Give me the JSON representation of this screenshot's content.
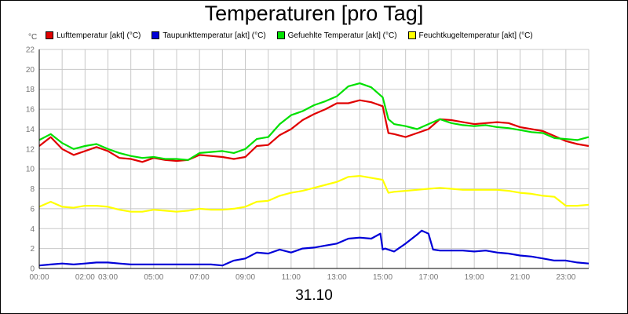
{
  "chart_data": {
    "type": "line",
    "title": "Temperaturen [pro Tag]",
    "unit_label": "°C",
    "date_label": "31.10",
    "ylim": [
      0,
      22
    ],
    "y_ticks": [
      0,
      2,
      4,
      6,
      8,
      10,
      12,
      14,
      16,
      18,
      20,
      22
    ],
    "xlim": [
      0,
      24
    ],
    "x_ticks": [
      {
        "value": 0,
        "label": "00:00"
      },
      {
        "value": 2,
        "label": "02:00"
      },
      {
        "value": 3,
        "label": "03:00"
      },
      {
        "value": 5,
        "label": "05:00"
      },
      {
        "value": 7,
        "label": "07:00"
      },
      {
        "value": 9,
        "label": "09:00"
      },
      {
        "value": 11,
        "label": "11:00"
      },
      {
        "value": 13,
        "label": "13:00"
      },
      {
        "value": 15,
        "label": "15:00"
      },
      {
        "value": 17,
        "label": "17:00"
      },
      {
        "value": 19,
        "label": "19:00"
      },
      {
        "value": 21,
        "label": "21:00"
      },
      {
        "value": 23,
        "label": "23:00"
      }
    ],
    "grid": true,
    "legend_position": "top",
    "series": [
      {
        "name": "Lufttemperatur [akt] (°C)",
        "color": "#e00000",
        "x": [
          0,
          0.5,
          1,
          1.5,
          2,
          2.5,
          3,
          3.5,
          4,
          4.5,
          5,
          5.5,
          6,
          6.5,
          7,
          7.5,
          8,
          8.5,
          9,
          9.5,
          10,
          10.5,
          11,
          11.5,
          12,
          12.5,
          13,
          13.5,
          14,
          14.5,
          15,
          15.25,
          15.5,
          16,
          16.5,
          17,
          17.5,
          18,
          18.5,
          19,
          19.5,
          20,
          20.5,
          21,
          21.5,
          22,
          22.5,
          23,
          23.5,
          24
        ],
        "y": [
          12.3,
          13.2,
          12.0,
          11.4,
          11.8,
          12.2,
          11.8,
          11.1,
          11.0,
          10.7,
          11.1,
          10.9,
          10.8,
          10.9,
          11.4,
          11.3,
          11.2,
          11.0,
          11.2,
          12.3,
          12.4,
          13.4,
          14.0,
          14.9,
          15.5,
          16.0,
          16.6,
          16.6,
          16.9,
          16.7,
          16.3,
          13.6,
          13.5,
          13.2,
          13.6,
          14.0,
          15.0,
          14.9,
          14.7,
          14.5,
          14.6,
          14.7,
          14.6,
          14.2,
          14.0,
          13.8,
          13.3,
          12.8,
          12.5,
          12.3
        ]
      },
      {
        "name": "Taupunkttemperatur [akt] (°C)",
        "color": "#0000d8",
        "x": [
          0,
          0.5,
          1,
          1.5,
          2,
          2.5,
          3,
          3.5,
          4,
          4.5,
          5,
          5.5,
          6,
          6.5,
          7,
          7.5,
          8,
          8.5,
          9,
          9.5,
          10,
          10.5,
          11,
          11.5,
          12,
          12.5,
          13,
          13.5,
          14,
          14.5,
          14.9,
          15.0,
          15.1,
          15.5,
          16,
          16.5,
          16.7,
          17.0,
          17.2,
          17.5,
          18,
          18.5,
          19,
          19.5,
          20,
          20.5,
          21,
          21.5,
          22,
          22.5,
          23,
          23.5,
          24
        ],
        "y": [
          0.3,
          0.4,
          0.5,
          0.4,
          0.5,
          0.6,
          0.6,
          0.5,
          0.4,
          0.4,
          0.4,
          0.4,
          0.4,
          0.4,
          0.4,
          0.4,
          0.3,
          0.8,
          1.0,
          1.6,
          1.5,
          1.9,
          1.6,
          2.0,
          2.1,
          2.3,
          2.5,
          3.0,
          3.1,
          3.0,
          3.5,
          1.9,
          2.0,
          1.7,
          2.5,
          3.4,
          3.8,
          3.5,
          1.9,
          1.8,
          1.8,
          1.8,
          1.7,
          1.8,
          1.6,
          1.5,
          1.3,
          1.2,
          1.0,
          0.8,
          0.8,
          0.6,
          0.5
        ]
      },
      {
        "name": "Gefuehlte Temperatur [akt] (°C)",
        "color": "#00e000",
        "x": [
          0,
          0.5,
          1,
          1.5,
          2,
          2.5,
          3,
          3.5,
          4,
          4.5,
          5,
          5.5,
          6,
          6.5,
          7,
          7.5,
          8,
          8.5,
          9,
          9.5,
          10,
          10.5,
          11,
          11.5,
          12,
          12.5,
          13,
          13.5,
          14,
          14.5,
          15,
          15.25,
          15.5,
          16,
          16.5,
          17,
          17.5,
          18,
          18.5,
          19,
          19.5,
          20,
          20.5,
          21,
          21.5,
          22,
          22.5,
          23,
          23.5,
          24
        ],
        "y": [
          12.9,
          13.5,
          12.6,
          12.0,
          12.3,
          12.5,
          12.0,
          11.6,
          11.3,
          11.1,
          11.2,
          11.0,
          11.0,
          10.9,
          11.6,
          11.7,
          11.8,
          11.6,
          12.0,
          13.0,
          13.2,
          14.5,
          15.4,
          15.8,
          16.4,
          16.8,
          17.3,
          18.3,
          18.6,
          18.2,
          17.2,
          15.0,
          14.5,
          14.3,
          14.0,
          14.5,
          15.0,
          14.6,
          14.4,
          14.3,
          14.4,
          14.2,
          14.1,
          13.9,
          13.7,
          13.6,
          13.1,
          13.0,
          12.9,
          13.2
        ]
      },
      {
        "name": "Feuchtkugeltemperatur [akt] (°C)",
        "color": "#ffff00",
        "x": [
          0,
          0.5,
          1,
          1.5,
          2,
          2.5,
          3,
          3.5,
          4,
          4.5,
          5,
          5.5,
          6,
          6.5,
          7,
          7.5,
          8,
          8.5,
          9,
          9.5,
          10,
          10.5,
          11,
          11.5,
          12,
          12.5,
          13,
          13.5,
          14,
          14.5,
          15,
          15.25,
          15.5,
          16,
          16.5,
          17,
          17.5,
          18,
          18.5,
          19,
          19.5,
          20,
          20.5,
          21,
          21.5,
          22,
          22.5,
          23,
          23.5,
          24
        ],
        "y": [
          6.2,
          6.7,
          6.2,
          6.1,
          6.3,
          6.3,
          6.2,
          5.9,
          5.7,
          5.7,
          5.9,
          5.8,
          5.7,
          5.8,
          6.0,
          5.9,
          5.9,
          6.0,
          6.2,
          6.7,
          6.8,
          7.3,
          7.6,
          7.8,
          8.1,
          8.4,
          8.7,
          9.2,
          9.3,
          9.1,
          8.9,
          7.6,
          7.7,
          7.8,
          7.9,
          8.0,
          8.1,
          8.0,
          7.9,
          7.9,
          7.9,
          7.9,
          7.8,
          7.6,
          7.5,
          7.3,
          7.2,
          6.3,
          6.3,
          6.4
        ]
      }
    ]
  }
}
